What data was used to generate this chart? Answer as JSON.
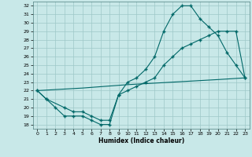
{
  "xlabel": "Humidex (Indice chaleur)",
  "background_color": "#c8e8e8",
  "grid_color": "#9ec8c8",
  "line_color": "#006868",
  "xlim": [
    -0.5,
    23.5
  ],
  "ylim": [
    17.5,
    32.5
  ],
  "yticks": [
    18,
    19,
    20,
    21,
    22,
    23,
    24,
    25,
    26,
    27,
    28,
    29,
    30,
    31,
    32
  ],
  "xticks": [
    0,
    1,
    2,
    3,
    4,
    5,
    6,
    7,
    8,
    9,
    10,
    11,
    12,
    13,
    14,
    15,
    16,
    17,
    18,
    19,
    20,
    21,
    22,
    23
  ],
  "line1_x": [
    0,
    1,
    2,
    3,
    4,
    5,
    6,
    7,
    8,
    9,
    10,
    11,
    12,
    13,
    14,
    15,
    16,
    17,
    18,
    19,
    20,
    21,
    22,
    23
  ],
  "line1_y": [
    22,
    21,
    20,
    19,
    19,
    19,
    18.5,
    18,
    18,
    21.5,
    23,
    23.5,
    24.5,
    26,
    29,
    31,
    32,
    32,
    30.5,
    29.5,
    28.5,
    26.5,
    25,
    23.5
  ],
  "line2_x": [
    0,
    1,
    3,
    4,
    5,
    6,
    7,
    8,
    9,
    10,
    11,
    12,
    13,
    14,
    15,
    16,
    17,
    18,
    19,
    20,
    21,
    22,
    23
  ],
  "line2_y": [
    22,
    21,
    20,
    19.5,
    19.5,
    19,
    18.5,
    18.5,
    21.5,
    22,
    22.5,
    23,
    23.5,
    25,
    26,
    27,
    27.5,
    28,
    28.5,
    29,
    29,
    29,
    23.5
  ],
  "line3_x": [
    0,
    5,
    10,
    15,
    20,
    23
  ],
  "line3_y": [
    22,
    22.3,
    22.7,
    23,
    23.3,
    23.5
  ]
}
